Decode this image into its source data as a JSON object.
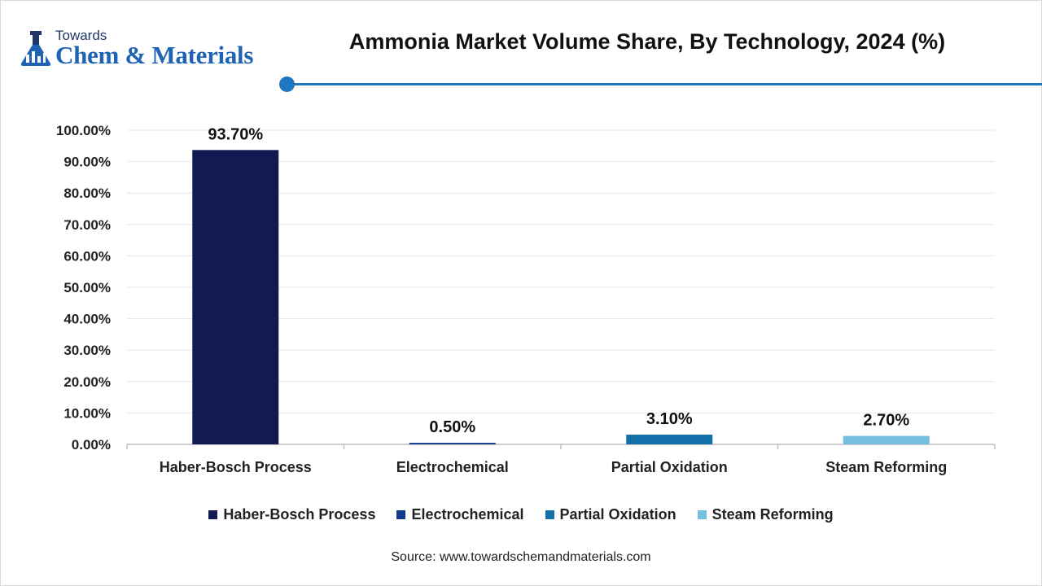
{
  "brand": {
    "top_text": "Towards",
    "main_text": "Chem & Materials"
  },
  "title": "Ammonia Market Volume Share, By Technology, 2024 (%)",
  "source": "Source: www.towardschemandmaterials.com",
  "colors": {
    "accent": "#1f77c0",
    "grid": "#e6e6e6",
    "axis": "#bfbfbf"
  },
  "chart_data": {
    "type": "bar",
    "title": "Ammonia Market Volume Share, By Technology, 2024 (%)",
    "xlabel": "",
    "ylabel": "",
    "ylim": [
      0,
      100
    ],
    "yticks": [
      0,
      10,
      20,
      30,
      40,
      50,
      60,
      70,
      80,
      90,
      100
    ],
    "ytick_labels": [
      "0.00%",
      "10.00%",
      "20.00%",
      "30.00%",
      "40.00%",
      "50.00%",
      "60.00%",
      "70.00%",
      "80.00%",
      "90.00%",
      "100.00%"
    ],
    "categories": [
      "Haber-Bosch Process",
      "Electrochemical",
      "Partial Oxidation",
      "Steam Reforming"
    ],
    "values": [
      93.7,
      0.5,
      3.1,
      2.7
    ],
    "data_labels": [
      "93.70%",
      "0.50%",
      "3.10%",
      "2.70%"
    ],
    "bar_colors": [
      "#121a52",
      "#123a8c",
      "#1370a8",
      "#74bede"
    ],
    "legend": {
      "position": "bottom",
      "entries": [
        "Haber-Bosch Process",
        "Electrochemical",
        "Partial Oxidation",
        "Steam Reforming"
      ]
    },
    "grid": true
  }
}
